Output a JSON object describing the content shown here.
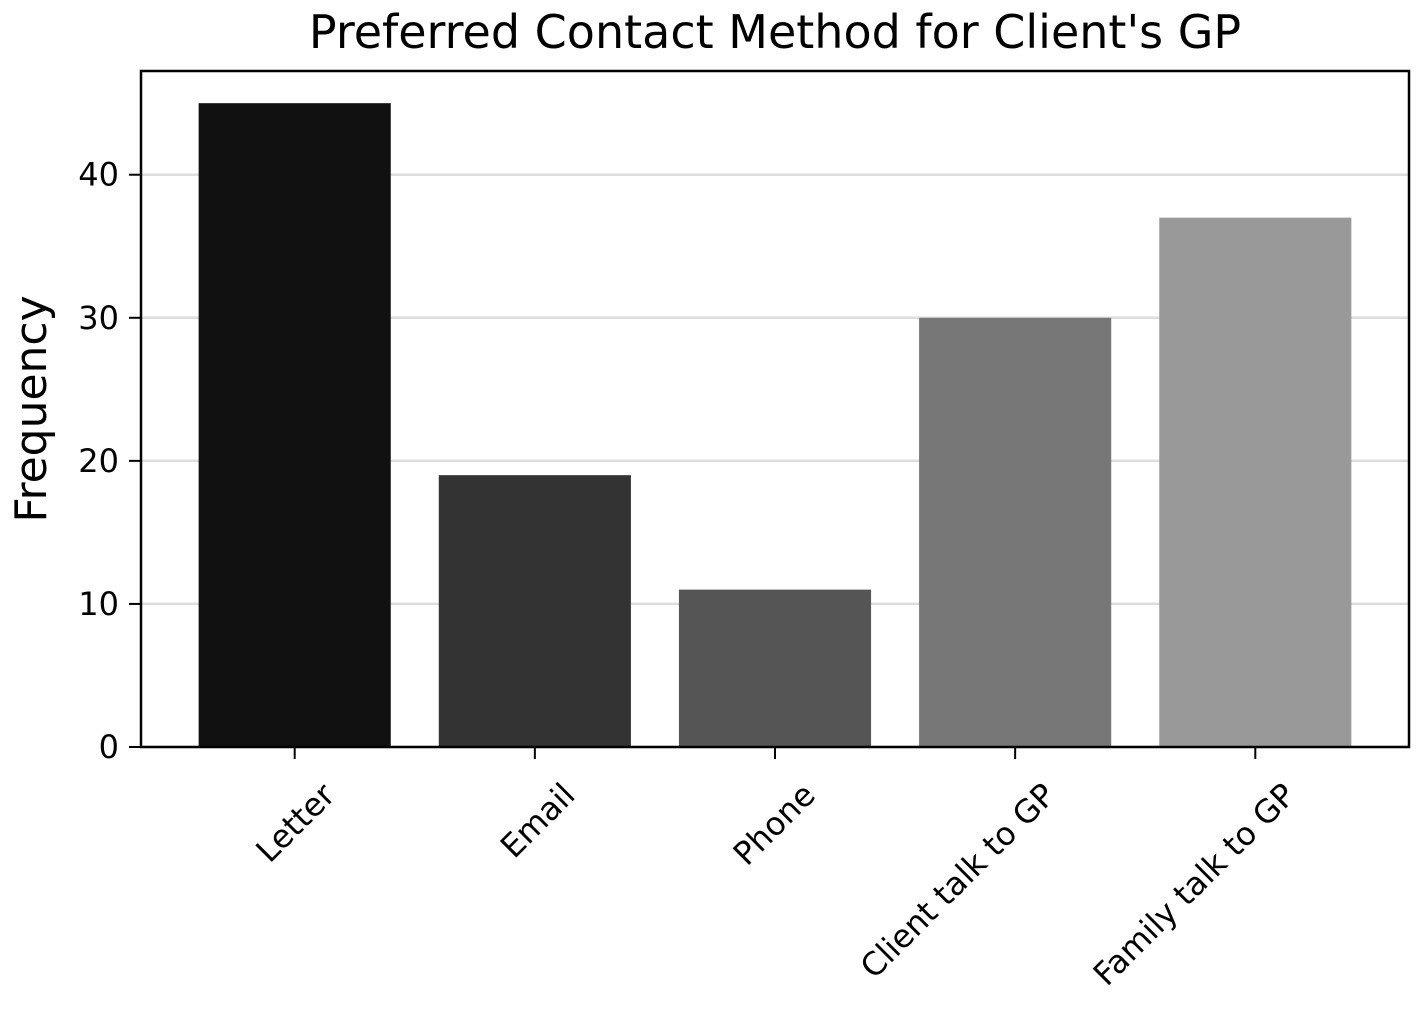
{
  "chart_data": {
    "type": "bar",
    "title": "Preferred Contact Method for Client's GP",
    "y_label": "Frequency",
    "categories": [
      "Letter",
      "Email",
      "Phone",
      "Client talk to GP",
      "Family talk to GP"
    ],
    "values": [
      45,
      19,
      11,
      30,
      37
    ],
    "colors": [
      "#111111",
      "#333333",
      "#555555",
      "#777777",
      "#999999"
    ],
    "ylim": [
      0,
      47.25
    ],
    "yticks": [
      0,
      10,
      20,
      30,
      40
    ],
    "grid": true
  }
}
